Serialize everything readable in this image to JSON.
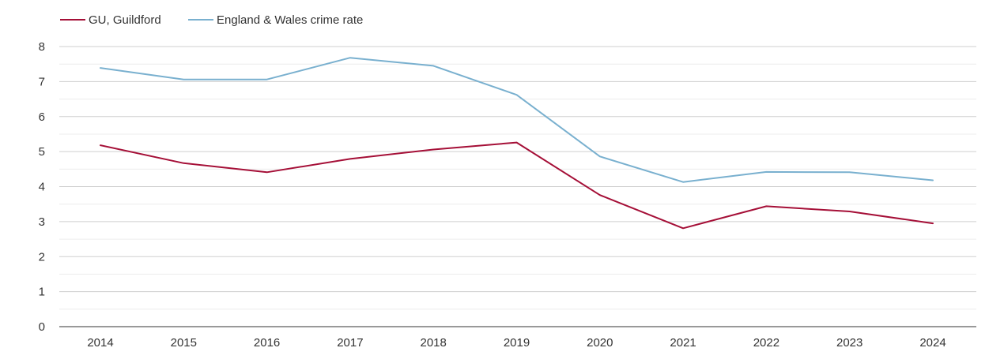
{
  "chart_data": {
    "type": "line",
    "title": "",
    "xlabel": "",
    "ylabel": "",
    "categories": [
      "2014",
      "2015",
      "2016",
      "2017",
      "2018",
      "2019",
      "2020",
      "2021",
      "2022",
      "2023",
      "2024"
    ],
    "ylim": [
      0,
      8
    ],
    "y_ticks": [
      "0",
      "1",
      "2",
      "3",
      "4",
      "5",
      "6",
      "7",
      "8"
    ],
    "grid": true,
    "legend_position": "top-left",
    "series": [
      {
        "name": "GU, Guildford",
        "color": "#a50f37",
        "values": [
          5.18,
          4.67,
          4.41,
          4.79,
          5.06,
          5.26,
          3.76,
          2.81,
          3.44,
          3.29,
          2.95
        ]
      },
      {
        "name": "England & Wales crime rate",
        "color": "#79b0cf",
        "values": [
          7.39,
          7.06,
          7.06,
          7.68,
          7.45,
          6.62,
          4.86,
          4.13,
          4.42,
          4.41,
          4.18
        ]
      }
    ]
  }
}
